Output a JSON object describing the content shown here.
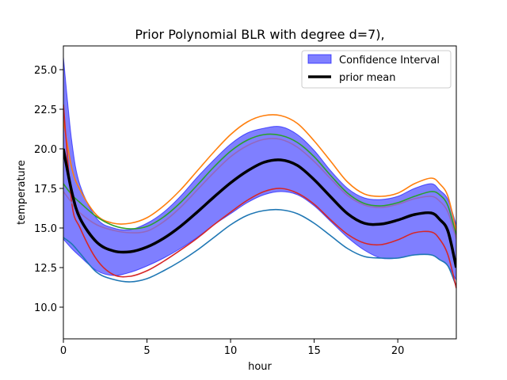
{
  "chart_data": {
    "type": "line",
    "title": "Prior Polynomial BLR with degree d=7),",
    "xlabel": "hour",
    "ylabel": "temperature",
    "xlim": [
      0,
      23.5
    ],
    "ylim": [
      8.0,
      26.5
    ],
    "xticks": [
      0,
      5,
      10,
      15,
      20
    ],
    "yticks": [
      10.0,
      12.5,
      15.0,
      17.5,
      20.0,
      22.5,
      25.0
    ],
    "xtick_labels": [
      "0",
      "5",
      "10",
      "15",
      "20"
    ],
    "ytick_labels": [
      "10.0",
      "12.5",
      "15.0",
      "17.5",
      "20.0",
      "22.5",
      "25.0"
    ],
    "grid": false,
    "legend_position": "top-right",
    "legend": [
      {
        "label": "Confidence Interval",
        "kind": "band"
      },
      {
        "label": "prior mean",
        "kind": "line"
      }
    ],
    "x": [
      0,
      0.5,
      1,
      2,
      3,
      4,
      5,
      6,
      7,
      8,
      9,
      10,
      11,
      12,
      13,
      14,
      15,
      16,
      17,
      18,
      19,
      20,
      21,
      22,
      22.5,
      23,
      23.5
    ],
    "confidence_interval": {
      "color": "#0000ff",
      "lower": [
        14.3,
        13.7,
        13.2,
        12.3,
        12.0,
        12.2,
        12.6,
        13.1,
        13.7,
        14.4,
        15.2,
        15.9,
        16.6,
        17.1,
        17.3,
        17.1,
        16.4,
        15.4,
        14.4,
        13.6,
        13.1,
        13.1,
        13.3,
        13.3,
        13.0,
        12.6,
        11.7
      ],
      "upper": [
        25.8,
        20.5,
        17.7,
        15.6,
        15.0,
        14.9,
        15.3,
        16.0,
        17.0,
        18.2,
        19.3,
        20.3,
        21.0,
        21.3,
        21.4,
        20.9,
        19.9,
        18.6,
        17.5,
        16.9,
        16.8,
        17.0,
        17.5,
        17.8,
        17.4,
        16.8,
        15.2
      ]
    },
    "series": [
      {
        "name": "prior mean",
        "color": "#000000",
        "width": 3.5,
        "values": [
          20.0,
          17.3,
          15.6,
          14.1,
          13.55,
          13.5,
          13.8,
          14.35,
          15.1,
          16.0,
          16.95,
          17.85,
          18.6,
          19.15,
          19.3,
          18.95,
          18.05,
          16.95,
          15.9,
          15.3,
          15.25,
          15.5,
          15.85,
          15.95,
          15.55,
          14.8,
          12.5
        ]
      },
      {
        "color": "#1f77b4",
        "width": 1.6,
        "values": [
          14.4,
          14.0,
          13.4,
          12.2,
          11.75,
          11.6,
          11.8,
          12.3,
          12.9,
          13.6,
          14.4,
          15.2,
          15.8,
          16.1,
          16.15,
          15.9,
          15.3,
          14.5,
          13.7,
          13.2,
          13.1,
          13.1,
          13.3,
          13.3,
          13.0,
          12.6,
          11.3
        ]
      },
      {
        "color": "#ff7f0e",
        "width": 1.6,
        "values": [
          21.8,
          18.8,
          17.4,
          15.8,
          15.3,
          15.3,
          15.65,
          16.4,
          17.4,
          18.6,
          19.8,
          20.9,
          21.7,
          22.1,
          22.1,
          21.6,
          20.5,
          19.2,
          17.9,
          17.15,
          17.0,
          17.2,
          17.8,
          18.15,
          17.8,
          17.0,
          14.8
        ]
      },
      {
        "color": "#2ca02c",
        "width": 1.6,
        "values": [
          17.8,
          17.1,
          16.6,
          15.7,
          15.15,
          14.95,
          15.1,
          15.7,
          16.6,
          17.7,
          18.85,
          19.85,
          20.55,
          20.9,
          20.85,
          20.4,
          19.5,
          18.3,
          17.2,
          16.55,
          16.4,
          16.6,
          17.0,
          17.3,
          17.1,
          16.4,
          14.5
        ]
      },
      {
        "color": "#d62728",
        "width": 1.6,
        "values": [
          22.8,
          16.6,
          15.0,
          13.0,
          12.05,
          11.95,
          12.3,
          12.9,
          13.6,
          14.35,
          15.2,
          16.0,
          16.75,
          17.3,
          17.5,
          17.2,
          16.5,
          15.5,
          14.6,
          14.05,
          13.95,
          14.25,
          14.7,
          14.75,
          14.3,
          13.3,
          11.2
        ]
      },
      {
        "color": "#9467bd",
        "width": 1.6,
        "values": [
          17.3,
          16.6,
          15.95,
          15.2,
          14.85,
          14.7,
          14.8,
          15.4,
          16.3,
          17.4,
          18.5,
          19.5,
          20.2,
          20.6,
          20.6,
          20.1,
          19.2,
          18.1,
          17.05,
          16.45,
          16.3,
          16.5,
          16.85,
          17.0,
          16.7,
          16.0,
          14.3
        ]
      }
    ]
  }
}
